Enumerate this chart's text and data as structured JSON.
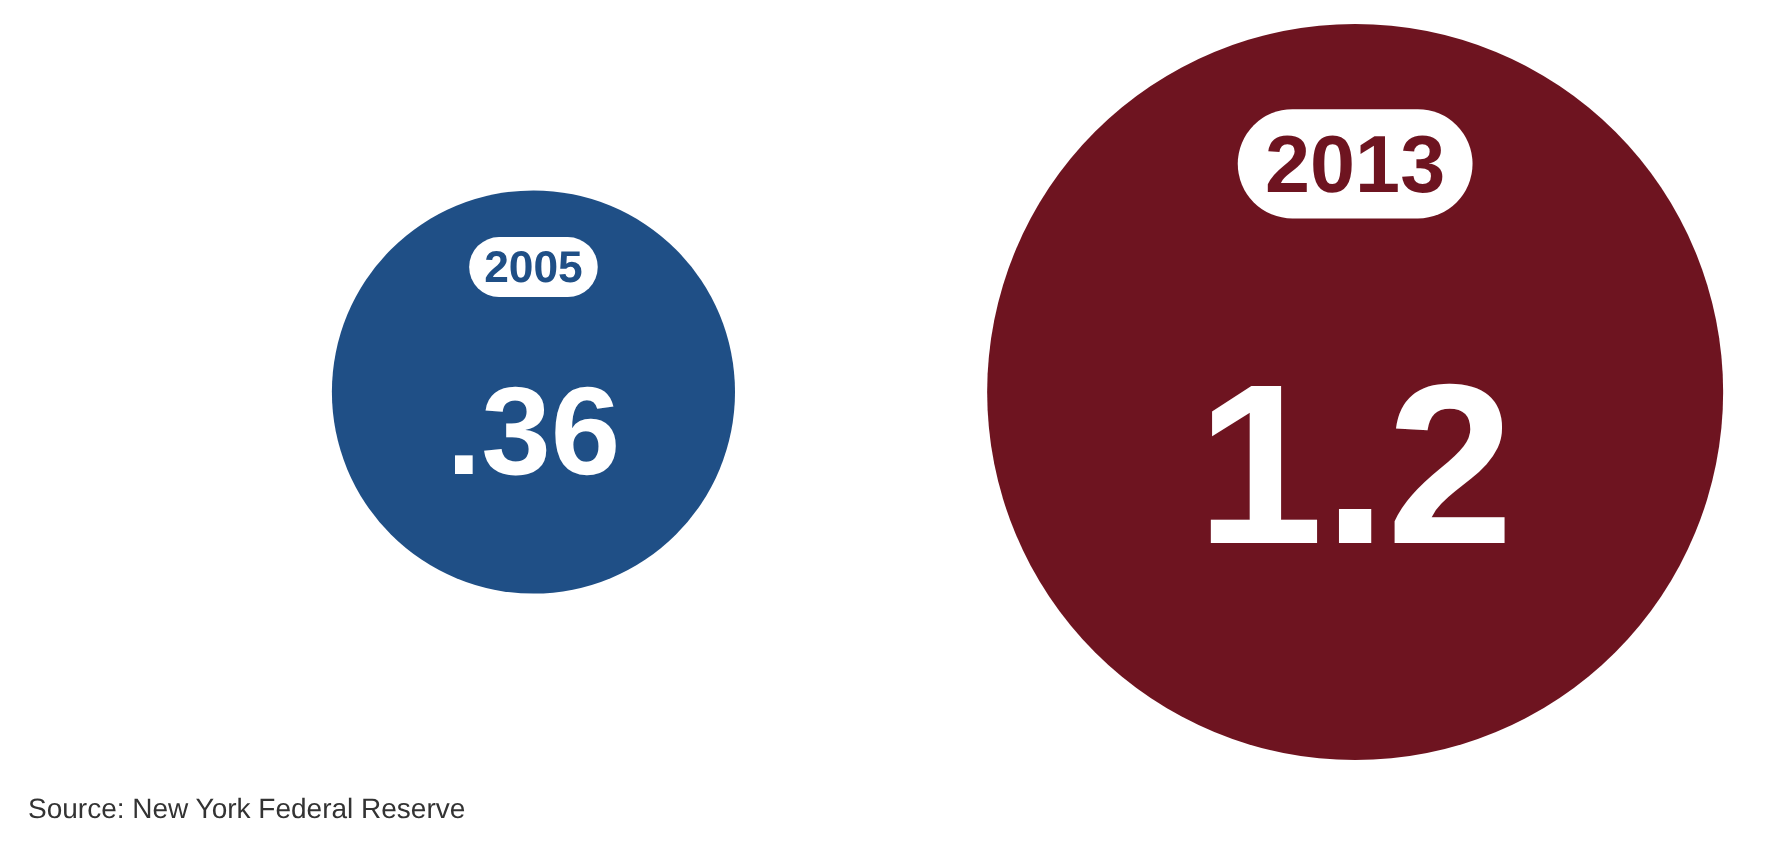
{
  "chart_data": {
    "type": "other",
    "categories": [
      "2005",
      "2013"
    ],
    "values": [
      0.36,
      1.2
    ],
    "value_labels": [
      ".36",
      "1.2"
    ],
    "colors": [
      "#1f4f86",
      "#6e1420"
    ],
    "annotations": [
      "Source: New York Federal Reserve"
    ]
  }
}
